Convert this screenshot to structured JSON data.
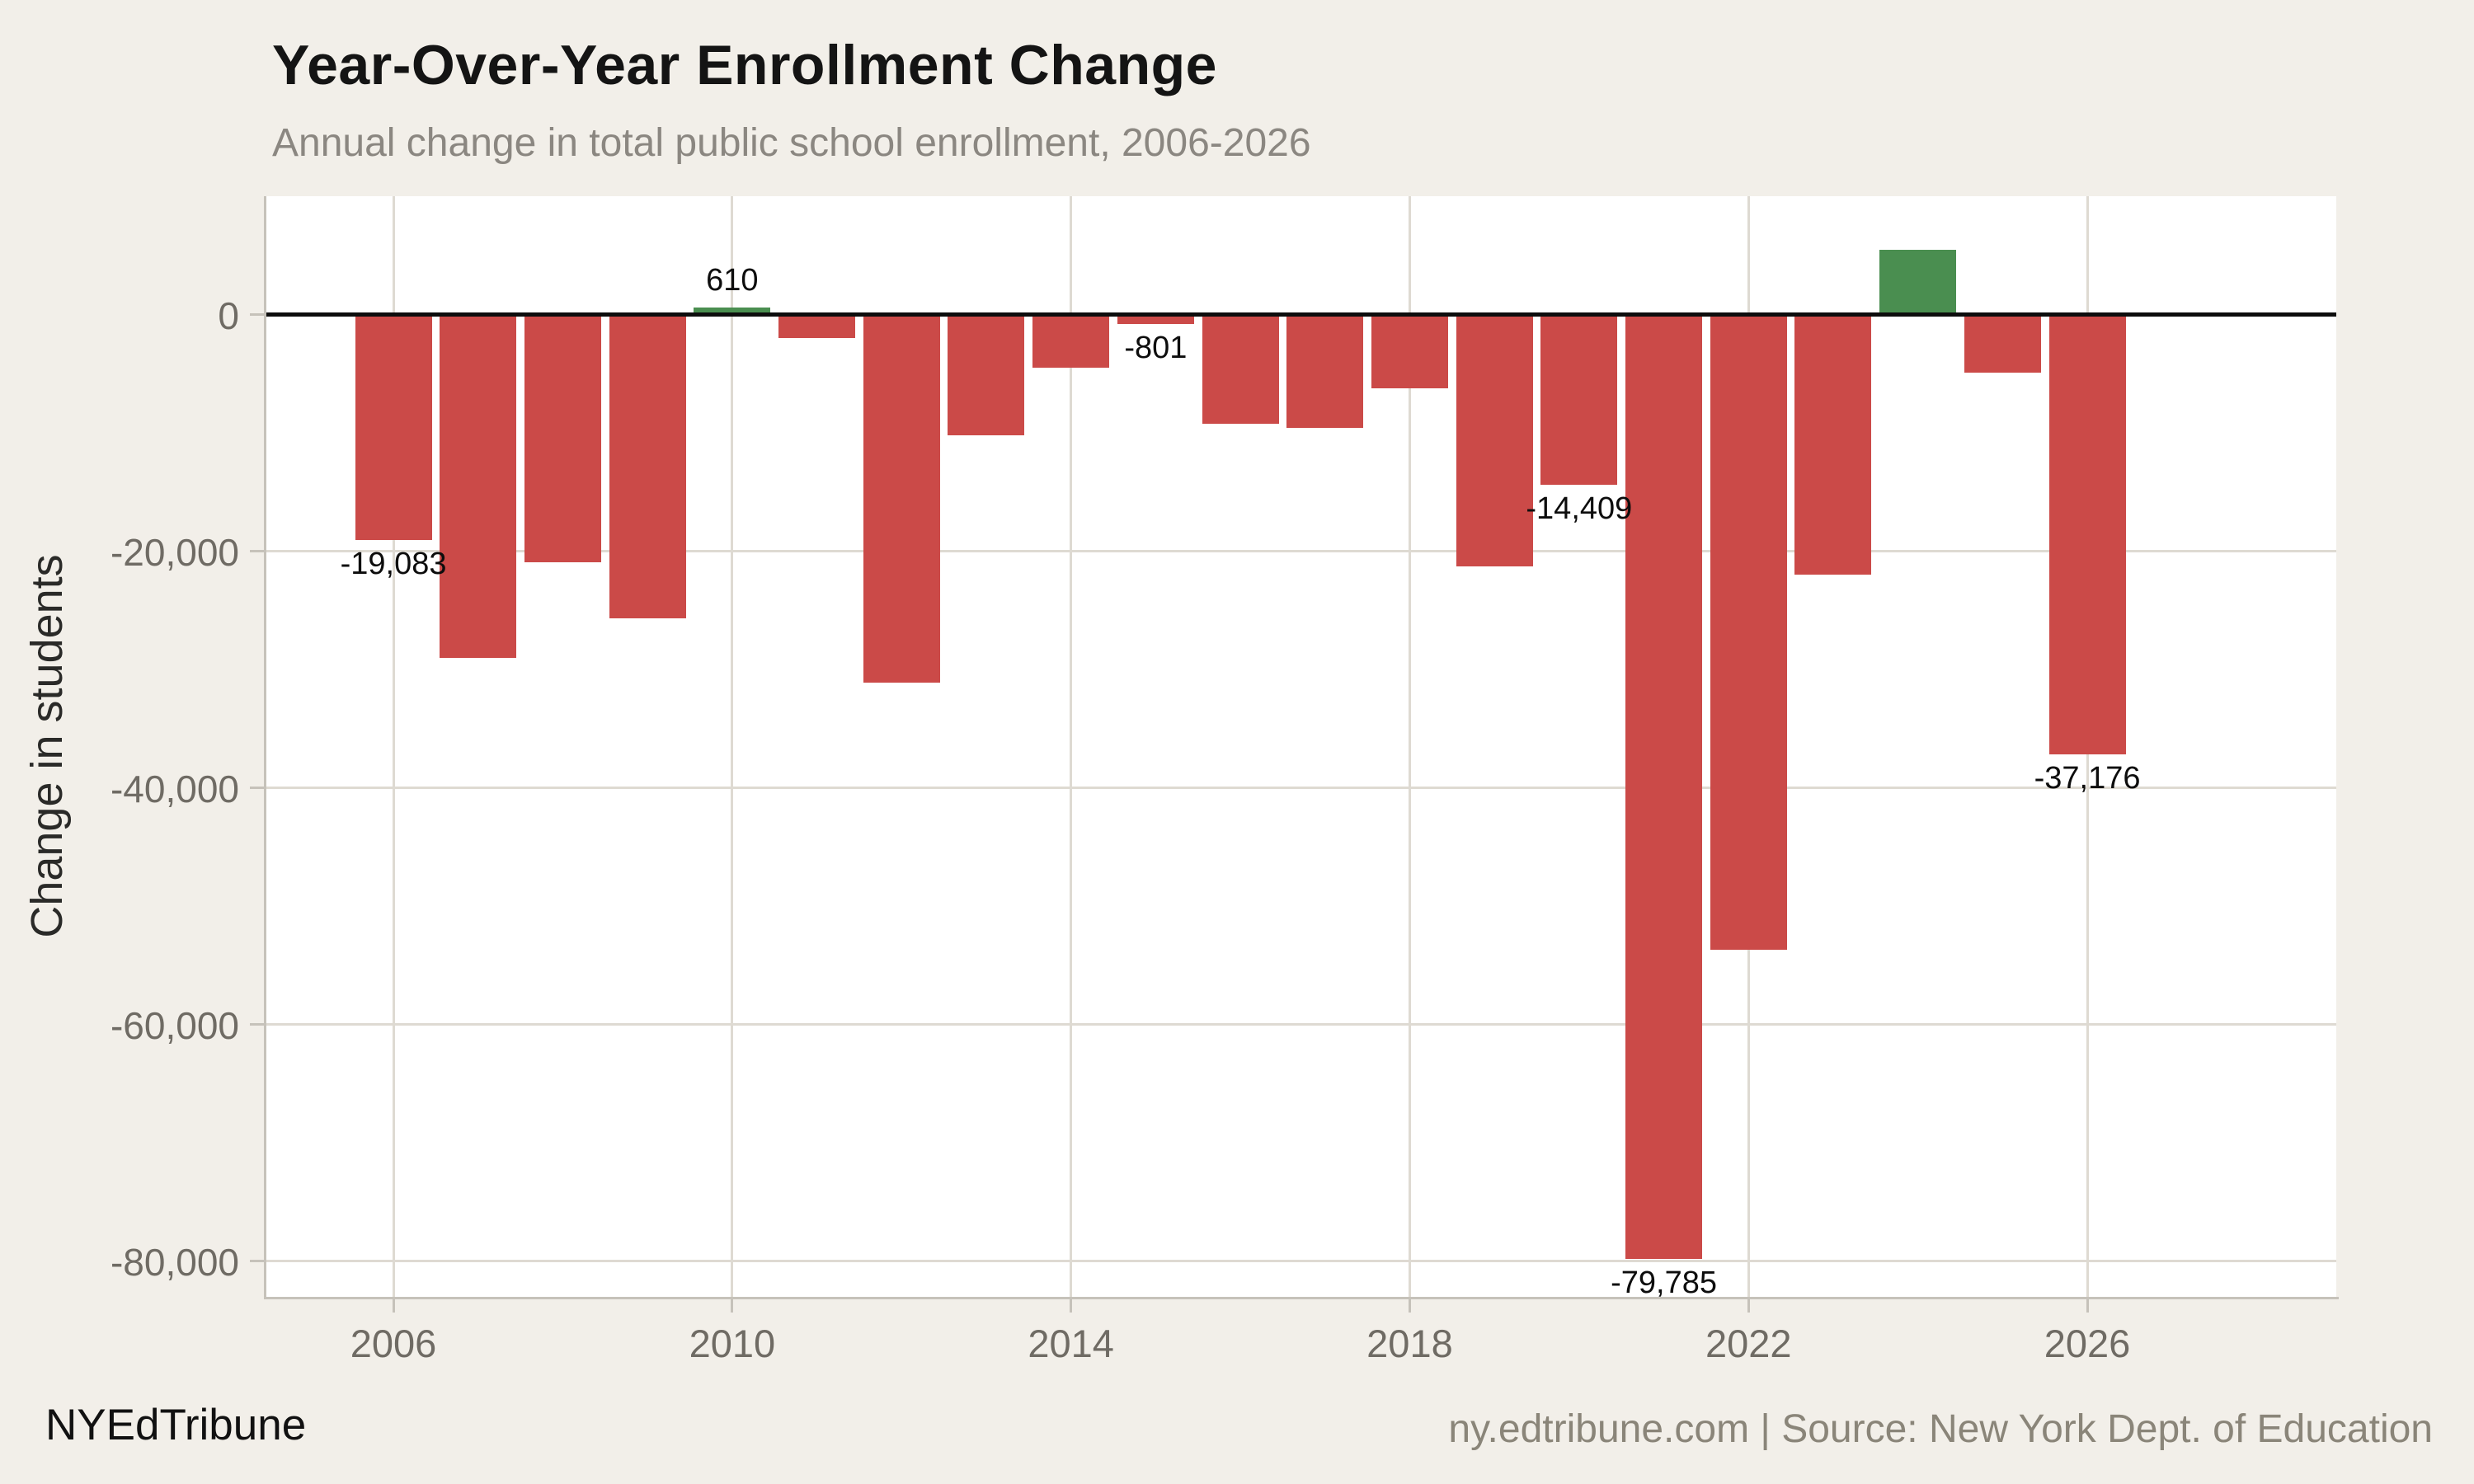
{
  "header": {
    "title": "Year-Over-Year Enrollment Change",
    "subtitle": "Annual change in total public school enrollment, 2006-2026"
  },
  "footer": {
    "brand": "NYEdTribune",
    "source": "ny.edtribune.com | Source: New York Dept. of Education"
  },
  "theme": {
    "page_bg": "#f2efe9",
    "plot_bg": "#ffffff",
    "grid": "#dedad2",
    "spine": "#c6c2ba",
    "zero_line": "#0d0d0d",
    "tick_text": "#6f6b64",
    "title_text": "#141414",
    "subtitle_text": "#8b8781",
    "source_text": "#8a8579"
  },
  "chart_data": {
    "type": "bar",
    "title": "Year-Over-Year Enrollment Change",
    "subtitle": "Annual change in total public school enrollment, 2006-2026",
    "xlabel": "",
    "ylabel": "Change in students",
    "x": [
      2006,
      2007,
      2008,
      2009,
      2010,
      2011,
      2012,
      2013,
      2014,
      2015,
      2016,
      2017,
      2018,
      2019,
      2020,
      2021,
      2022,
      2023,
      2024,
      2025,
      2026
    ],
    "values": [
      -19083,
      -29000,
      -20900,
      -25700,
      610,
      -2000,
      -31100,
      -10200,
      -4500,
      -801,
      -9200,
      -9600,
      -6200,
      -21300,
      -14409,
      -79785,
      -53700,
      -22000,
      5500,
      -4900,
      -37176
    ],
    "bar_labels": {
      "2006": "-19,083",
      "2010": "610",
      "2015": "-801",
      "2020": "-14,409",
      "2021": "-79,785",
      "2026": "-37,176"
    },
    "x_ticks": [
      2006,
      2010,
      2014,
      2018,
      2022,
      2026
    ],
    "x_tick_labels": [
      "2006",
      "2010",
      "2014",
      "2018",
      "2022",
      "2026"
    ],
    "y_ticks": [
      0,
      -20000,
      -40000,
      -60000,
      -80000
    ],
    "y_tick_labels": [
      "0",
      "-20,000",
      "-40,000",
      "-60,000",
      "-80,000"
    ],
    "xlim": [
      2004.5,
      2028.94
    ],
    "ylim": [
      -83000,
      10000
    ],
    "grid": true,
    "legend": false,
    "colors": {
      "positive": "#4a8e50",
      "negative": "#cb4a48"
    }
  }
}
